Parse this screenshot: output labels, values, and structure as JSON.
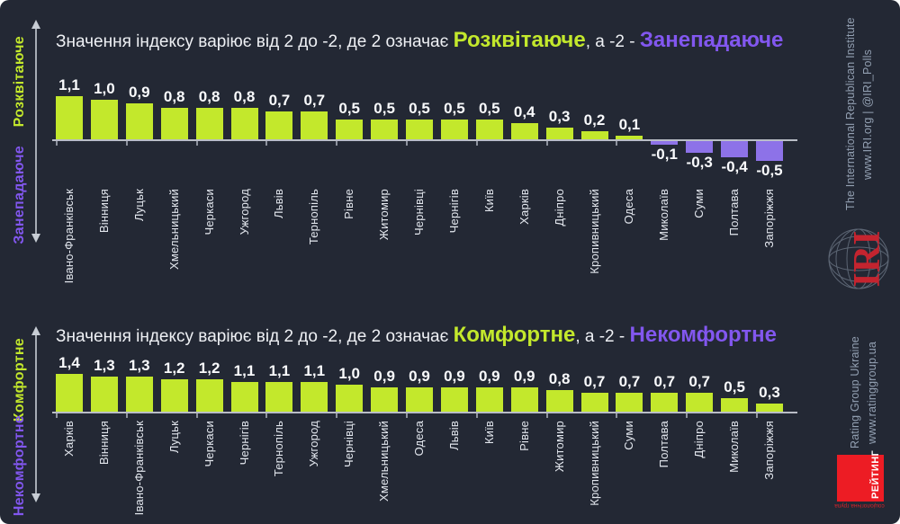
{
  "colors": {
    "background": "#232834",
    "bar_positive": "#c3e82c",
    "bar_negative": "#8d72e8",
    "accent_positive": "#c3e82c",
    "accent_negative": "#8257ef",
    "axis": "#b9bdc6",
    "value_text": "#fafbfd",
    "city_text": "#e3e7ee",
    "sidebar_text": "#93a0b2",
    "iri_red": "#c4242f",
    "rating_red": "#ed1c24"
  },
  "chart_data": [
    {
      "type": "bar",
      "title": {
        "prefix": "Значення індексу варіює від 2 до -2, де 2 означає ",
        "positive_term": "Розквітаюче",
        "middle": ", а -2 - ",
        "negative_term": "Занепадаюче"
      },
      "axis": {
        "positive_label": "Розквітаюче",
        "negative_label": "Занепадаюче"
      },
      "ylim": [
        -2,
        2
      ],
      "legend_position": "none",
      "grid": false,
      "categories": [
        "Івано-Франківськ",
        "Вінниця",
        "Луцьк",
        "Хмельницький",
        "Черкаси",
        "Ужгород",
        "Львів",
        "Тернопіль",
        "Рівне",
        "Житомир",
        "Чернівці",
        "Чернігів",
        "Київ",
        "Харків",
        "Дніпро",
        "Кропивницький",
        "Одеса",
        "Миколаїв",
        "Суми",
        "Полтава",
        "Запоріжжя"
      ],
      "values": [
        1.1,
        1.0,
        0.9,
        0.8,
        0.8,
        0.8,
        0.7,
        0.7,
        0.5,
        0.5,
        0.5,
        0.5,
        0.5,
        0.4,
        0.3,
        0.2,
        0.1,
        -0.1,
        -0.3,
        -0.4,
        -0.5
      ],
      "value_labels": [
        "1,1",
        "1,0",
        "0,9",
        "0,8",
        "0,8",
        "0,8",
        "0,7",
        "0,7",
        "0,5",
        "0,5",
        "0,5",
        "0,5",
        "0,5",
        "0,4",
        "0,3",
        "0,2",
        "0,1",
        "-0,1",
        "-0,3",
        "-0,4",
        "-0,5"
      ]
    },
    {
      "type": "bar",
      "title": {
        "prefix": "Значення індексу варіює від 2 до -2, де 2 означає ",
        "positive_term": "Комфортне",
        "middle": ", а -2 - ",
        "negative_term": "Некомфортне"
      },
      "axis": {
        "positive_label": "Комфортне",
        "negative_label": "Некомфортне"
      },
      "ylim": [
        -2,
        2
      ],
      "legend_position": "none",
      "grid": false,
      "categories": [
        "Харків",
        "Вінниця",
        "Івано-Франківськ",
        "Луцьк",
        "Черкаси",
        "Чернігів",
        "Тернопіль",
        "Ужгород",
        "Чернівці",
        "Хмельницький",
        "Одеса",
        "Львів",
        "Київ",
        "Рівне",
        "Житомир",
        "Кропивницький",
        "Суми",
        "Полтава",
        "Дніпро",
        "Миколаїв",
        "Запоріжжя"
      ],
      "values": [
        1.4,
        1.3,
        1.3,
        1.2,
        1.2,
        1.1,
        1.1,
        1.1,
        1.0,
        0.9,
        0.9,
        0.9,
        0.9,
        0.9,
        0.8,
        0.7,
        0.7,
        0.7,
        0.7,
        0.5,
        0.3
      ],
      "value_labels": [
        "1,4",
        "1,3",
        "1,3",
        "1,2",
        "1,2",
        "1,1",
        "1,1",
        "1,1",
        "1,0",
        "0,9",
        "0,9",
        "0,9",
        "0,9",
        "0,9",
        "0,8",
        "0,7",
        "0,7",
        "0,7",
        "0,7",
        "0,5",
        "0,3"
      ]
    }
  ],
  "branding": {
    "iri_line1": "The International Republican Institute",
    "iri_line2": "www.IRI.org | @IRI_Polls",
    "iri_logo_text": "IRI",
    "rating_line1": "Rating Group Ukraine",
    "rating_line2": "www.ratinggroup.ua",
    "rating_logo_text": "РЕЙТИНГ",
    "rating_logo_sub": "соціологічна група"
  }
}
